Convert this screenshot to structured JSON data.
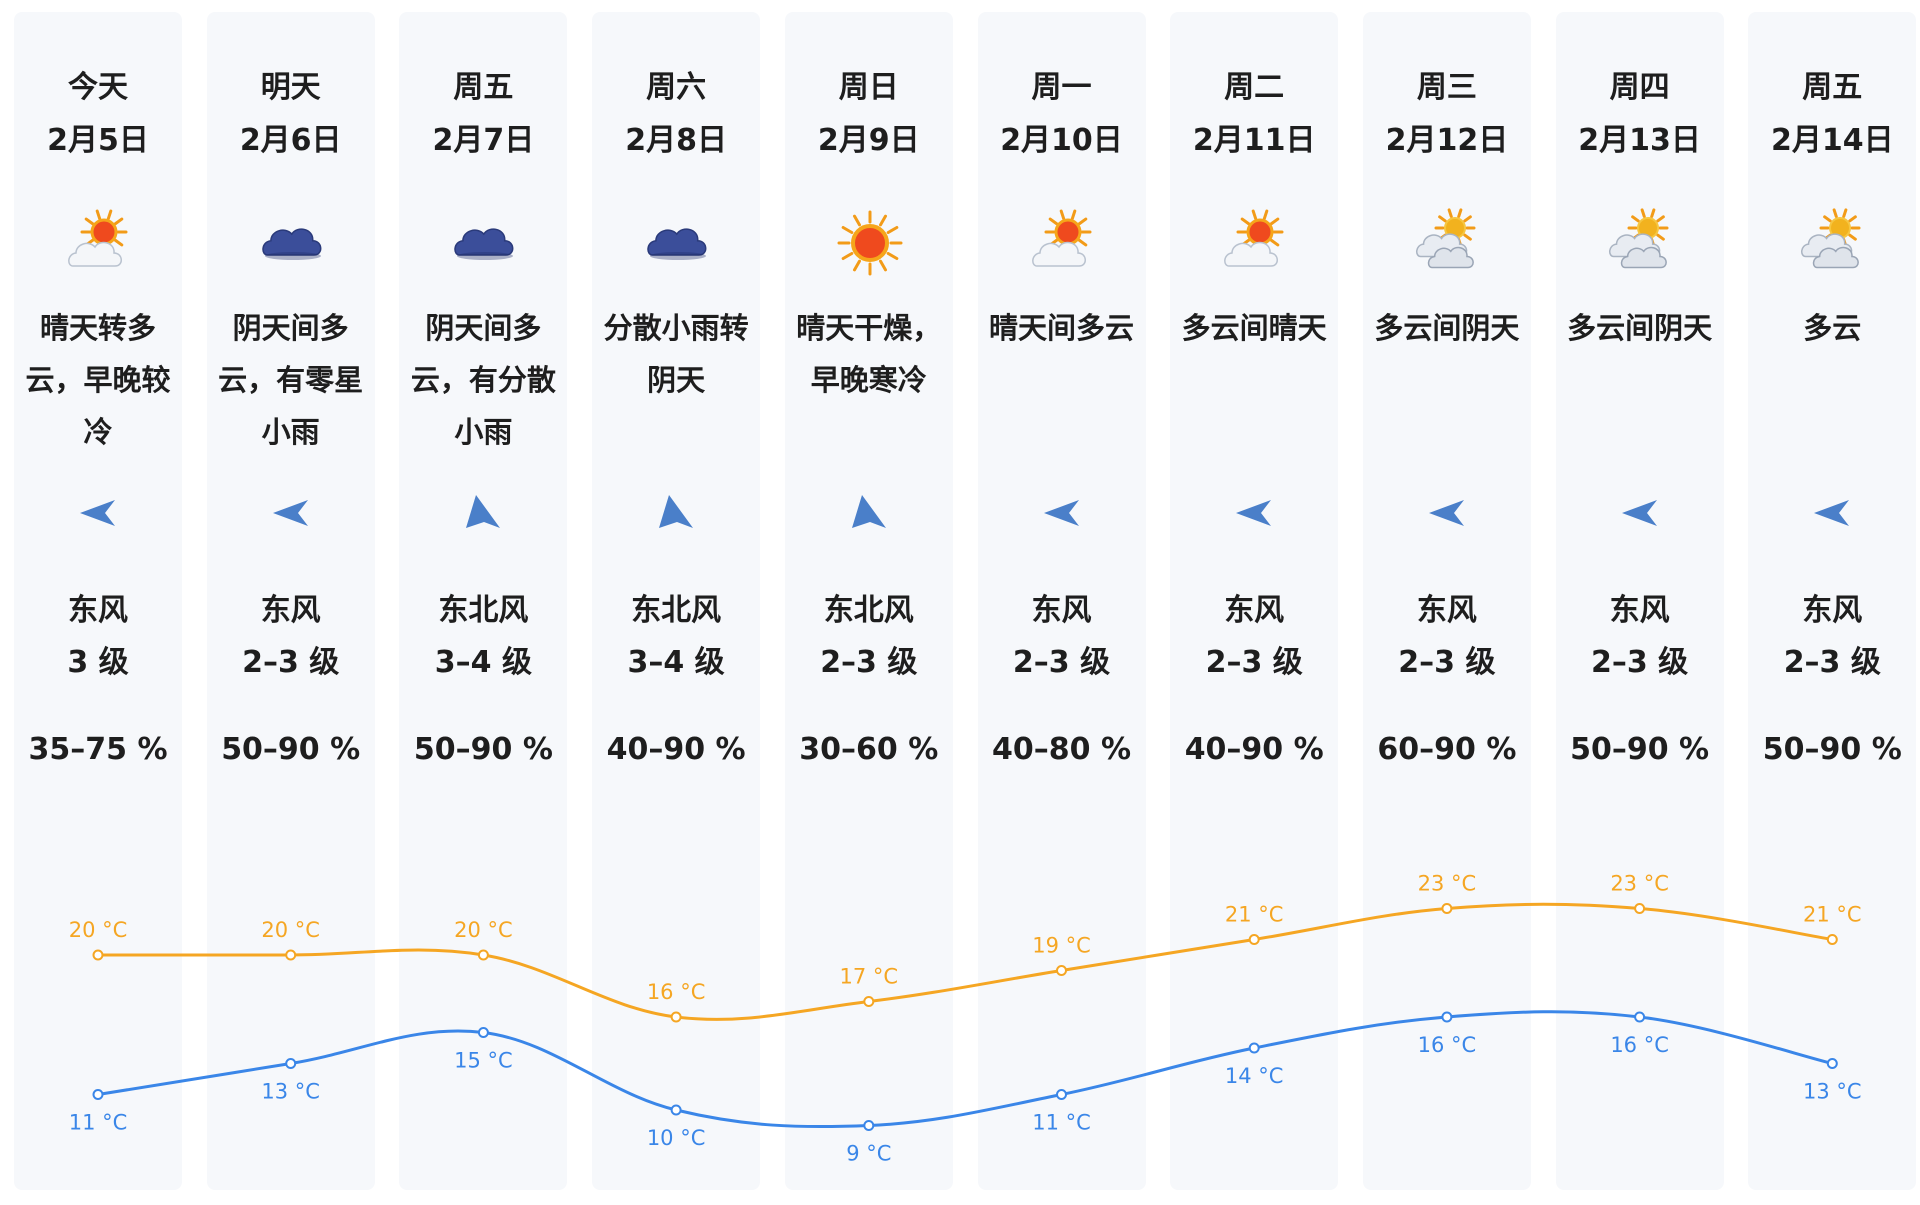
{
  "colors": {
    "high": "#f5a623",
    "low": "#3a86e8",
    "column_bg": "#f6f8fb",
    "wind_arrow": "#4a7fc9"
  },
  "days": [
    {
      "name": "今天",
      "date": "2月5日",
      "icon": "sun-cloud-icon",
      "desc": "晴天转多云，早晚较冷",
      "wind_icon": "wind-arrow-left-icon",
      "wind_dir": "东风",
      "wind_level": "3 级",
      "humidity": "35–75 %",
      "high": "20 °C",
      "low": "11 °C"
    },
    {
      "name": "明天",
      "date": "2月6日",
      "icon": "overcast-icon",
      "desc": "阴天间多云，有零星小雨",
      "wind_icon": "wind-arrow-left-icon",
      "wind_dir": "东风",
      "wind_level": "2–3 级",
      "humidity": "50–90 %",
      "high": "20 °C",
      "low": "13 °C"
    },
    {
      "name": "周五",
      "date": "2月7日",
      "icon": "overcast-icon",
      "desc": "阴天间多云，有分散小雨",
      "wind_icon": "wind-arrow-northeast-icon",
      "wind_dir": "东北风",
      "wind_level": "3–4 级",
      "humidity": "50–90 %",
      "high": "20 °C",
      "low": "15 °C"
    },
    {
      "name": "周六",
      "date": "2月8日",
      "icon": "overcast-icon",
      "desc": "分散小雨转阴天",
      "wind_icon": "wind-arrow-northeast-icon",
      "wind_dir": "东北风",
      "wind_level": "3–4 级",
      "humidity": "40–90 %",
      "high": "16 °C",
      "low": "10 °C"
    },
    {
      "name": "周日",
      "date": "2月9日",
      "icon": "sun-icon",
      "desc": "晴天干燥，早晚寒冷",
      "wind_icon": "wind-arrow-northeast-icon",
      "wind_dir": "东北风",
      "wind_level": "2–3 级",
      "humidity": "30–60 %",
      "high": "17 °C",
      "low": "9 °C"
    },
    {
      "name": "周一",
      "date": "2月10日",
      "icon": "sun-cloud-icon",
      "desc": "晴天间多云",
      "wind_icon": "wind-arrow-left-icon",
      "wind_dir": "东风",
      "wind_level": "2–3 级",
      "humidity": "40–80 %",
      "high": "19 °C",
      "low": "11 °C"
    },
    {
      "name": "周二",
      "date": "2月11日",
      "icon": "sun-cloud-icon",
      "desc": "多云间晴天",
      "wind_icon": "wind-arrow-left-icon",
      "wind_dir": "东风",
      "wind_level": "2–3 级",
      "humidity": "40–90 %",
      "high": "21 °C",
      "low": "14 °C"
    },
    {
      "name": "周三",
      "date": "2月12日",
      "icon": "cloudy-sun-icon",
      "desc": "多云间阴天",
      "wind_icon": "wind-arrow-left-icon",
      "wind_dir": "东风",
      "wind_level": "2–3 级",
      "humidity": "60–90 %",
      "high": "23 °C",
      "low": "16 °C"
    },
    {
      "name": "周四",
      "date": "2月13日",
      "icon": "cloudy-sun-icon",
      "desc": "多云间阴天",
      "wind_icon": "wind-arrow-left-icon",
      "wind_dir": "东风",
      "wind_level": "2–3 级",
      "humidity": "50–90 %",
      "high": "23 °C",
      "low": "16 °C"
    },
    {
      "name": "周五",
      "date": "2月14日",
      "icon": "cloudy-sun-icon",
      "desc": "多云",
      "wind_icon": "wind-arrow-left-icon",
      "wind_dir": "东风",
      "wind_level": "2–3 级",
      "humidity": "50–90 %",
      "high": "21 °C",
      "low": "13 °C"
    }
  ],
  "chart_data": {
    "type": "line",
    "categories": [
      "2月5日",
      "2月6日",
      "2月7日",
      "2月8日",
      "2月9日",
      "2月10日",
      "2月11日",
      "2月12日",
      "2月13日",
      "2月14日"
    ],
    "series": [
      {
        "values": [
          20,
          20,
          20,
          16,
          17,
          19,
          21,
          23,
          23,
          21
        ]
      },
      {
        "values": [
          11,
          13,
          15,
          10,
          9,
          11,
          14,
          16,
          16,
          13
        ]
      }
    ],
    "unit": "°C",
    "grid": false,
    "legend": "none"
  }
}
